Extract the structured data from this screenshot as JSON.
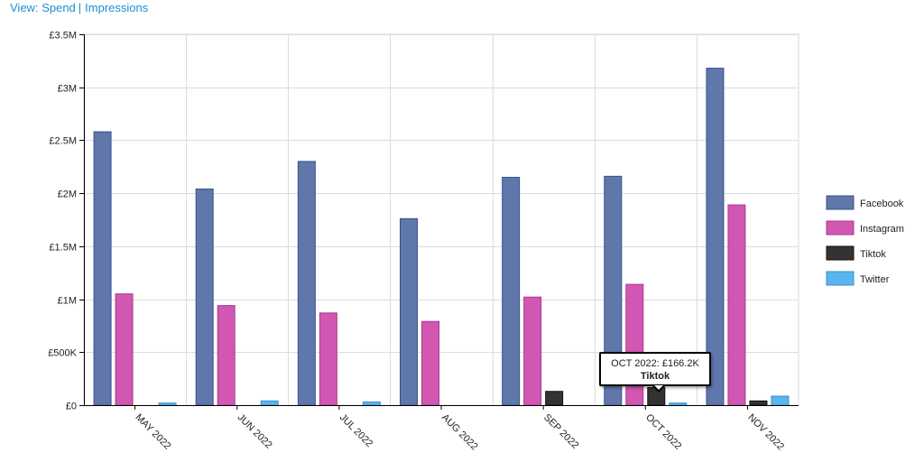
{
  "view": {
    "prefix": "View:",
    "spend_label": "Spend",
    "separator": "|",
    "impressions_label": "Impressions"
  },
  "tooltip": {
    "value_text": "OCT 2022: £166.2K",
    "series_text": "Tiktok"
  },
  "chart_data": {
    "type": "bar",
    "categories": [
      "MAY 2022",
      "JUN 2022",
      "JUL 2022",
      "AUG 2022",
      "SEP 2022",
      "OCT 2022",
      "NOV 2022"
    ],
    "series": [
      {
        "name": "Facebook",
        "color": "#5f77aa",
        "stroke": "#3b5188",
        "values": [
          2580000,
          2040000,
          2300000,
          1760000,
          2150000,
          2160000,
          3180000
        ]
      },
      {
        "name": "Instagram",
        "color": "#d157b2",
        "stroke": "#a83a8c",
        "values": [
          1050000,
          940000,
          870000,
          790000,
          1020000,
          1140000,
          1890000
        ]
      },
      {
        "name": "Tiktok",
        "color": "#333333",
        "stroke": "#111111",
        "values": [
          0,
          0,
          0,
          0,
          130000,
          166200,
          40000
        ]
      },
      {
        "name": "Twitter",
        "color": "#5ab4ee",
        "stroke": "#3a92cc",
        "values": [
          20000,
          40000,
          30000,
          0,
          0,
          20000,
          85000
        ]
      }
    ],
    "ylim": [
      0,
      3500000
    ],
    "y_ticks": [
      {
        "value": 0,
        "label": "£0"
      },
      {
        "value": 500000,
        "label": "£500K"
      },
      {
        "value": 1000000,
        "label": "£1M"
      },
      {
        "value": 1500000,
        "label": "£1.5M"
      },
      {
        "value": 2000000,
        "label": "£2M"
      },
      {
        "value": 2500000,
        "label": "£2.5M"
      },
      {
        "value": 3000000,
        "label": "£3M"
      },
      {
        "value": 3500000,
        "label": "£3.5M"
      }
    ],
    "title": "",
    "xlabel": "",
    "ylabel": "",
    "grid": true,
    "legend_position": "right"
  }
}
